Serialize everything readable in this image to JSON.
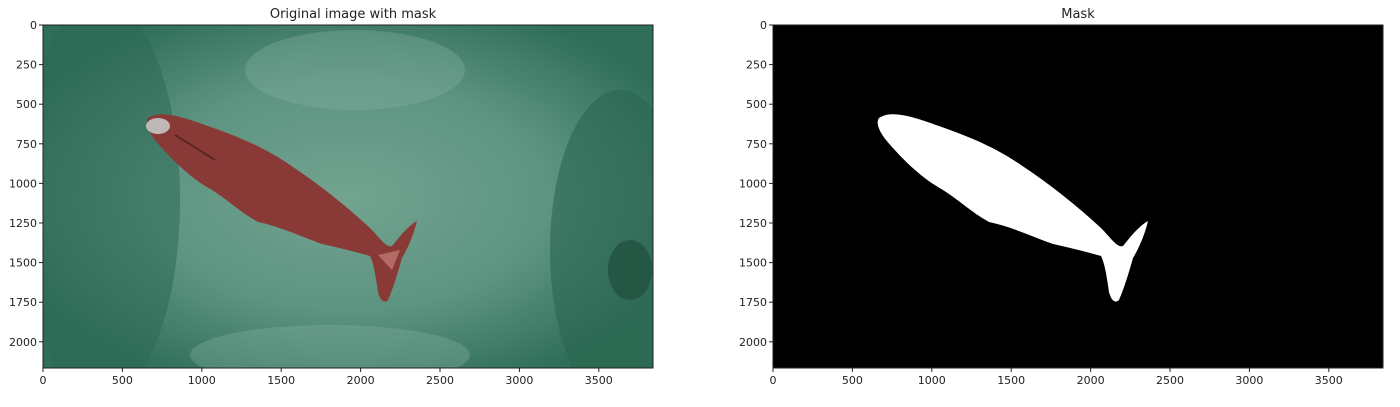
{
  "panels": [
    {
      "title": "Original image with mask",
      "x_ticks": [
        "0",
        "500",
        "1000",
        "1500",
        "2000",
        "2500",
        "3000",
        "3500"
      ],
      "y_ticks": [
        "0",
        "250",
        "500",
        "750",
        "1000",
        "1250",
        "1500",
        "1750",
        "2000"
      ]
    },
    {
      "title": "Mask",
      "x_ticks": [
        "0",
        "500",
        "1000",
        "1500",
        "2000",
        "2500",
        "3000",
        "3500"
      ],
      "y_ticks": [
        "0",
        "250",
        "500",
        "750",
        "1000",
        "1250",
        "1500",
        "1750",
        "2000"
      ]
    }
  ],
  "colors": {
    "ocean": "#3f7c67",
    "ocean_light": "#6e9e8d",
    "mask_overlay": "#8a3a36",
    "mask_bg": "#000000",
    "mask_fg": "#ffffff"
  }
}
